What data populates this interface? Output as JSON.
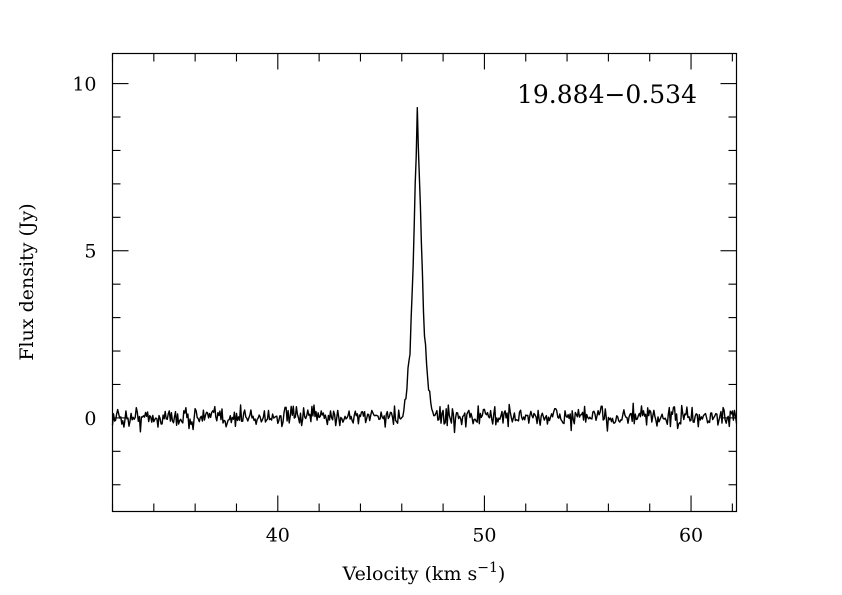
{
  "chart_data": {
    "type": "line",
    "title": "",
    "annotation": "19.884−0.534",
    "xlabel": {
      "main": "Velocity (km s",
      "sup": "−1",
      "close": ")"
    },
    "ylabel": "Flux density (Jy)",
    "xlim": [
      32.0,
      62.2
    ],
    "ylim": [
      -2.8,
      10.9
    ],
    "xticks": [
      40,
      50,
      60
    ],
    "xtick_labels": [
      "40",
      "50",
      "60"
    ],
    "xminor_step": 2,
    "yticks": [
      0,
      5,
      10
    ],
    "ytick_labels": [
      "0",
      "5",
      "10"
    ],
    "yminor_step": 1,
    "grid": false,
    "series": [
      {
        "x": [
          32.0,
          46.0,
          46.2,
          46.4,
          46.55,
          46.65,
          46.75,
          46.85,
          46.95,
          47.05,
          47.2,
          47.4,
          47.6,
          62.2
        ],
        "y": [
          0.0,
          0.05,
          0.5,
          2.0,
          4.5,
          7.0,
          8.95,
          7.3,
          5.0,
          3.0,
          1.6,
          0.5,
          0.05,
          0.0
        ],
        "noise_rms": 0.15
      }
    ]
  }
}
